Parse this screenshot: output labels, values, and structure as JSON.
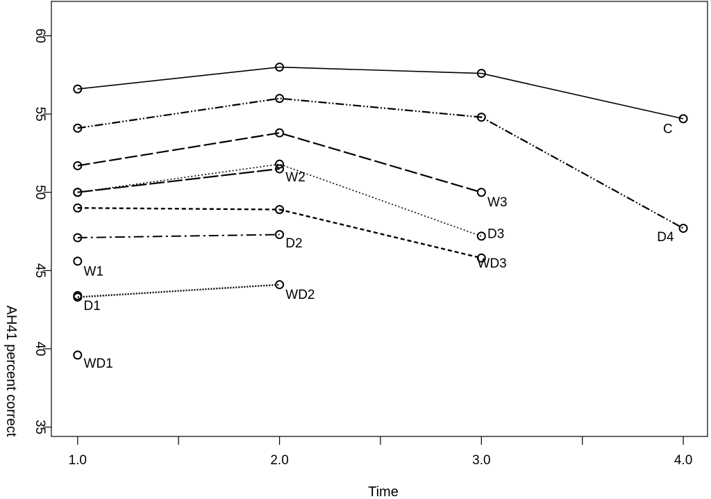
{
  "chart_data": {
    "type": "line",
    "title": "",
    "xlabel": "Time",
    "ylabel": "AH41 percent correct",
    "xlim": [
      0.87,
      4.12
    ],
    "ylim": [
      34.4,
      62.2
    ],
    "xticks": [
      1.0,
      1.5,
      2.0,
      2.5,
      3.0,
      3.5,
      4.0
    ],
    "xtick_labels": [
      "1.0",
      "",
      "2.0",
      "",
      "3.0",
      "",
      "4.0"
    ],
    "yticks": [
      35,
      40,
      45,
      50,
      55,
      60
    ],
    "ytick_labels": [
      "35",
      "40",
      "45",
      "50",
      "55",
      "60"
    ],
    "grid": false,
    "marker": "open-circle",
    "series": [
      {
        "name": "C",
        "dash": "solid",
        "width": 1.6,
        "x": [
          1,
          2,
          3,
          4
        ],
        "y": [
          56.6,
          58.0,
          57.6,
          54.7
        ]
      },
      {
        "name": "D4",
        "dash": "dashdotdot",
        "width": 2.2,
        "x": [
          1,
          2,
          3,
          4
        ],
        "y": [
          54.1,
          56.0,
          54.8,
          47.7
        ]
      },
      {
        "name": "W3",
        "dash": "longdash",
        "width": 2.2,
        "x": [
          1,
          2,
          3
        ],
        "y": [
          51.7,
          53.8,
          50.0
        ]
      },
      {
        "name": "D3",
        "dash": "dotted",
        "width": 1.6,
        "x": [
          1,
          2,
          3
        ],
        "y": [
          50.0,
          51.8,
          47.2
        ]
      },
      {
        "name": "W2",
        "dash": "longdash2",
        "width": 2.2,
        "x": [
          1,
          2
        ],
        "y": [
          50.0,
          51.5
        ]
      },
      {
        "name": "WD3",
        "dash": "dashed",
        "width": 2.4,
        "x": [
          1,
          2,
          3
        ],
        "y": [
          49.0,
          48.9,
          45.8
        ]
      },
      {
        "name": "D2",
        "dash": "dashdot",
        "width": 2.0,
        "x": [
          1,
          2
        ],
        "y": [
          47.1,
          47.3
        ]
      },
      {
        "name": "WD2",
        "dash": "dotted2",
        "width": 2.4,
        "x": [
          1,
          2
        ],
        "y": [
          43.3,
          44.1
        ]
      },
      {
        "name": "W1",
        "dash": "none",
        "width": 0,
        "x": [
          1
        ],
        "y": [
          45.6
        ]
      },
      {
        "name": "D1",
        "dash": "none",
        "width": 0,
        "x": [
          1
        ],
        "y": [
          43.4
        ]
      },
      {
        "name": "WD1",
        "dash": "none",
        "width": 0,
        "x": [
          1
        ],
        "y": [
          39.6
        ]
      }
    ],
    "point_labels": [
      {
        "text": "C",
        "x": 3.9,
        "y": 54.1
      },
      {
        "text": "D4",
        "x": 3.87,
        "y": 47.2
      },
      {
        "text": "W3",
        "x": 3.03,
        "y": 49.4
      },
      {
        "text": "D3",
        "x": 3.03,
        "y": 47.4
      },
      {
        "text": "WD3",
        "x": 2.98,
        "y": 45.5
      },
      {
        "text": "W2",
        "x": 2.03,
        "y": 51.0
      },
      {
        "text": "D2",
        "x": 2.03,
        "y": 46.8
      },
      {
        "text": "WD2",
        "x": 2.03,
        "y": 43.5
      },
      {
        "text": "W1",
        "x": 1.03,
        "y": 45.0
      },
      {
        "text": "D1",
        "x": 1.03,
        "y": 42.8
      },
      {
        "text": "WD1",
        "x": 1.03,
        "y": 39.1
      }
    ]
  }
}
